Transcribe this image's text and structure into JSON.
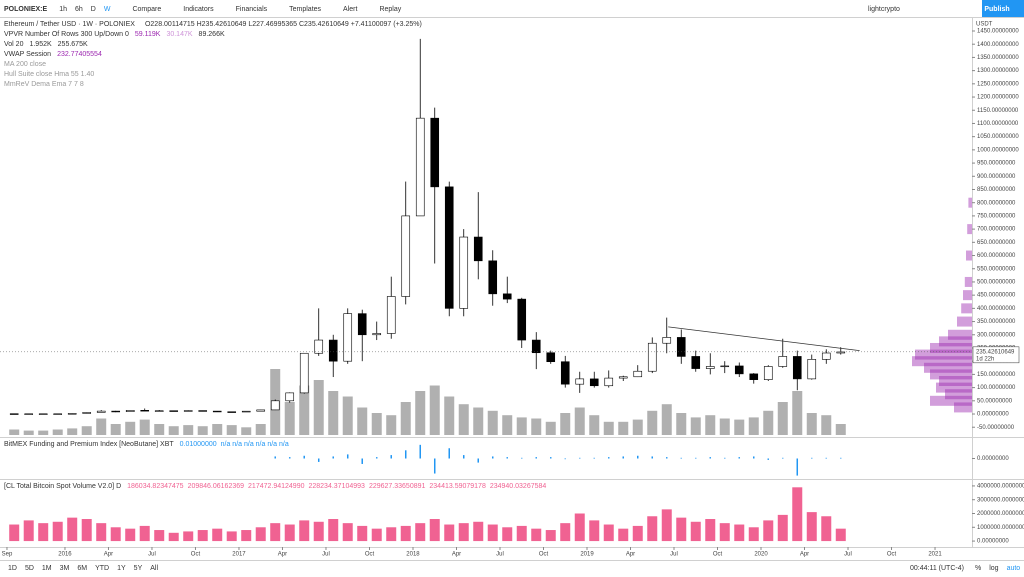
{
  "toolbar": {
    "symbol": "POLONIEX:E",
    "intervals": [
      "1h",
      "6h",
      "D",
      "W"
    ],
    "buttons": [
      "Compare",
      "Indicators",
      "Financials",
      "Templates",
      "Alert",
      "Replay"
    ],
    "user": "lightcrypto",
    "publish": "Publish"
  },
  "legend": {
    "title": "Ethereum / Tether USD · 1W · POLONIEX",
    "ohlc": "O228.00114715  H235.42610649  L227.46995365  C235.42610649  +7.41100097 (+3.25%)",
    "indicators": [
      {
        "name": "VPVR Number Of Rows 300 Up/Down 0",
        "values": [
          "59.119K",
          "30.147K",
          "89.266K"
        ]
      },
      {
        "name": "Vol 20",
        "values": [
          "1.952K",
          "255.675K"
        ]
      },
      {
        "name": "VWAP Session",
        "values": [
          "232.77405554"
        ]
      },
      {
        "name": "MA 200 close",
        "values": []
      },
      {
        "name": "Hull Suite close Hma 55 1.40",
        "values": []
      },
      {
        "name": "MmReV Dema Ema 7 7 8",
        "values": []
      }
    ]
  },
  "currency": "USDT",
  "chart_data": [
    {
      "type": "candlestick",
      "xlim": [
        -0.48,
        66.55
      ],
      "ylim": [
        -87,
        1503
      ],
      "yticks": [
        {
          "value": -50,
          "label": "-50.00000000"
        },
        {
          "value": 0,
          "label": "0.00000000"
        },
        {
          "value": 50,
          "label": "50.00000000"
        },
        {
          "value": 100,
          "label": "100.00000000"
        },
        {
          "value": 150,
          "label": "150.00000000"
        },
        {
          "value": 200,
          "label": "200.00000000"
        },
        {
          "value": 250,
          "label": "250.00000000"
        },
        {
          "value": 300,
          "label": "300.00000000"
        },
        {
          "value": 350,
          "label": "350.00000000"
        },
        {
          "value": 400,
          "label": "400.00000000"
        },
        {
          "value": 450,
          "label": "450.00000000"
        },
        {
          "value": 500,
          "label": "500.00000000"
        },
        {
          "value": 550,
          "label": "550.00000000"
        },
        {
          "value": 600,
          "label": "600.00000000"
        },
        {
          "value": 650,
          "label": "650.00000000"
        },
        {
          "value": 700,
          "label": "700.00000000"
        },
        {
          "value": 750,
          "label": "750.00000000"
        },
        {
          "value": 800,
          "label": "800.00000000"
        },
        {
          "value": 850,
          "label": "850.00000000"
        },
        {
          "value": 900,
          "label": "900.00000000"
        },
        {
          "value": 950,
          "label": "950.00000000"
        },
        {
          "value": 1000,
          "label": "1000.00000000"
        },
        {
          "value": 1050,
          "label": "1050.00000000"
        },
        {
          "value": 1100,
          "label": "1100.00000000"
        },
        {
          "value": 1150,
          "label": "1150.00000000"
        },
        {
          "value": 1200,
          "label": "1200.00000000"
        },
        {
          "value": 1250,
          "label": "1250.00000000"
        },
        {
          "value": 1300,
          "label": "1300.00000000"
        },
        {
          "value": 1350,
          "label": "1350.00000000"
        },
        {
          "value": 1400,
          "label": "1400.00000000"
        },
        {
          "value": 1450,
          "label": "1450.00000000"
        }
      ],
      "x": [
        0.5,
        1.5,
        2.5,
        3.5,
        4.5,
        5.5,
        6.5,
        7.5,
        8.5,
        9.5,
        10.5,
        11.5,
        12.5,
        13.5,
        14.5,
        15.5,
        16.5,
        17.5,
        18.5,
        19.5,
        20.5,
        21.5,
        22.5,
        23.5,
        24.5,
        25.5,
        26.5,
        27.5,
        28.5,
        29.5,
        30.5,
        31.5,
        32.5,
        33.5,
        34.5,
        35.5,
        36.5,
        37.5,
        38.5,
        39.5,
        40.5,
        41.5,
        42.5,
        43.5,
        44.5,
        45.5,
        46.5,
        47.5,
        48.5,
        49.5,
        50.5,
        51.5,
        52.5,
        53.5,
        54.5,
        55.5,
        56.5,
        57.5
      ],
      "open": [
        1.2,
        0.7,
        0.9,
        0.9,
        0.9,
        2.2,
        6,
        11,
        8.8,
        14,
        12,
        12.5,
        11,
        13,
        11,
        8.6,
        8,
        10.7,
        15.6,
        50,
        80,
        230,
        280,
        200,
        380,
        300,
        305,
        445,
        750,
        1120,
        860,
        400,
        670,
        580,
        455,
        435,
        280,
        232,
        198,
        113,
        133,
        107,
        136,
        141,
        162,
        268,
        290,
        218,
        172,
        180,
        182,
        152,
        130,
        180,
        218,
        133,
        207,
        231
      ],
      "high": [
        1.3,
        1.2,
        1,
        1,
        2.6,
        6.5,
        15,
        12,
        15,
        21,
        15,
        13,
        14,
        13,
        11,
        9,
        11,
        16,
        55,
        82,
        230,
        400,
        300,
        400,
        395,
        350,
        520,
        880,
        1420,
        1160,
        880,
        700,
        840,
        620,
        520,
        440,
        310,
        240,
        220,
        160,
        160,
        165,
        145,
        185,
        290,
        365,
        320,
        240,
        230,
        200,
        195,
        155,
        185,
        285,
        240,
        225,
        245,
        253
      ],
      "low": [
        0.6,
        0.4,
        0.8,
        0.8,
        0.9,
        2,
        6,
        7,
        8,
        11,
        10,
        10,
        11,
        10,
        8,
        6,
        8,
        10,
        15,
        43,
        77,
        220,
        140,
        190,
        200,
        280,
        285,
        415,
        750,
        570,
        370,
        370,
        510,
        410,
        420,
        250,
        170,
        190,
        100,
        80,
        100,
        100,
        125,
        140,
        155,
        230,
        190,
        160,
        150,
        155,
        140,
        115,
        125,
        175,
        90,
        130,
        190,
        225
      ],
      "close": [
        0.7,
        0.9,
        0.9,
        0.9,
        2.2,
        6,
        11,
        8.8,
        14,
        12,
        12.5,
        11,
        13,
        11,
        8.6,
        8,
        10.7,
        15.6,
        50,
        80,
        230,
        280,
        200,
        380,
        300,
        305,
        445,
        750,
        1120,
        860,
        400,
        670,
        580,
        455,
        435,
        280,
        232,
        198,
        113,
        133,
        107,
        136,
        141,
        162,
        268,
        290,
        218,
        172,
        180,
        182,
        152,
        130,
        180,
        218,
        133,
        207,
        231,
        235
      ],
      "volume": [
        5,
        4,
        4,
        5,
        6,
        8,
        15,
        10,
        12,
        14,
        10,
        8,
        9,
        8,
        10,
        9,
        7,
        10,
        60,
        30,
        45,
        50,
        40,
        35,
        25,
        20,
        18,
        30,
        40,
        45,
        35,
        28,
        25,
        22,
        18,
        16,
        15,
        12,
        20,
        25,
        18,
        12,
        12,
        14,
        22,
        28,
        20,
        16,
        18,
        15,
        14,
        16,
        22,
        30,
        40,
        20,
        18,
        10
      ],
      "volume_lim": [
        0,
        100
      ],
      "profile": {
        "prices": [
          25,
          50,
          75,
          100,
          125,
          150,
          175,
          200,
          225,
          250,
          275,
          300,
          350,
          400,
          450,
          500,
          600,
          700,
          800
        ],
        "values": [
          30,
          70,
          45,
          60,
          55,
          70,
          80,
          100,
          95,
          70,
          55,
          40,
          25,
          18,
          15,
          12,
          10,
          8,
          6
        ]
      },
      "profile_lim": [
        0,
        100
      ],
      "trendline": {
        "x": [
          45.6,
          58.8
        ],
        "y": [
          330,
          240
        ]
      },
      "last_price": 235.42610649,
      "countdown": "1d 22h"
    },
    {
      "type": "bar",
      "title": "BitMEX Funding and Premium Index [NeoButane] XBT",
      "title_values": [
        "0.01000000",
        "n/a n/a n/a n/a n/a n/a"
      ],
      "color": "#2196f3",
      "xlim": [
        -0.48,
        66.55
      ],
      "ylim": [
        -0.3,
        0.3
      ],
      "yticks": [
        {
          "value": 0,
          "label": "0.00000000"
        }
      ],
      "x": [
        0.5,
        1.5,
        2.5,
        3.5,
        4.5,
        5.5,
        6.5,
        7.5,
        8.5,
        9.5,
        10.5,
        11.5,
        12.5,
        13.5,
        14.5,
        15.5,
        16.5,
        17.5,
        18.5,
        19.5,
        20.5,
        21.5,
        22.5,
        23.5,
        24.5,
        25.5,
        26.5,
        27.5,
        28.5,
        29.5,
        30.5,
        31.5,
        32.5,
        33.5,
        34.5,
        35.5,
        36.5,
        37.5,
        38.5,
        39.5,
        40.5,
        41.5,
        42.5,
        43.5,
        44.5,
        45.5,
        46.5,
        47.5,
        48.5,
        49.5,
        50.5,
        51.5,
        52.5,
        53.5,
        54.5,
        55.5,
        56.5,
        57.5
      ],
      "values": [
        null,
        null,
        null,
        null,
        null,
        null,
        null,
        null,
        null,
        null,
        null,
        null,
        null,
        null,
        null,
        null,
        null,
        null,
        0.03,
        0.02,
        0.04,
        -0.05,
        0.03,
        0.06,
        -0.08,
        0.02,
        0.05,
        0.12,
        0.2,
        -0.22,
        0.15,
        0.05,
        -0.06,
        0.03,
        0.02,
        0.01,
        0.02,
        0.02,
        -0.01,
        0.01,
        0.01,
        0.02,
        0.03,
        0.04,
        0.03,
        0.02,
        0.01,
        0.01,
        0.02,
        0.01,
        0.02,
        0.03,
        -0.02,
        0.01,
        -0.25,
        0.01,
        0.01,
        0.01
      ]
    },
    {
      "type": "bar",
      "title": "[CL Total Bitcoin Spot Volume V2.0] D",
      "title_values": [
        "186034.82347475",
        "209846.06162369",
        "217472.94124990",
        "228234.37104993",
        "229627.33650891",
        "234413.59079178",
        "234940.03267584"
      ],
      "color": "#f06292",
      "xlim": [
        -0.48,
        66.55
      ],
      "ylim": [
        -430000,
        4430000
      ],
      "yticks": [
        {
          "value": 0,
          "label": "0.00000000"
        },
        {
          "value": 1000000,
          "label": "1000000.00000000"
        },
        {
          "value": 2000000,
          "label": "2000000.00000000"
        },
        {
          "value": 3000000,
          "label": "3000000.00000000"
        },
        {
          "value": 4000000,
          "label": "4000000.00000000"
        }
      ],
      "xticks": [
        {
          "value": 0,
          "label": "Sep"
        },
        {
          "value": 4,
          "label": "2016"
        },
        {
          "value": 7,
          "label": "Apr"
        },
        {
          "value": 10,
          "label": "Jul"
        },
        {
          "value": 13,
          "label": "Oct"
        },
        {
          "value": 16,
          "label": "2017"
        },
        {
          "value": 19,
          "label": "Apr"
        },
        {
          "value": 22,
          "label": "Jul"
        },
        {
          "value": 25,
          "label": "Oct"
        },
        {
          "value": 28,
          "label": "2018"
        },
        {
          "value": 31,
          "label": "Apr"
        },
        {
          "value": 34,
          "label": "Jul"
        },
        {
          "value": 37,
          "label": "Oct"
        },
        {
          "value": 40,
          "label": "2019"
        },
        {
          "value": 43,
          "label": "Apr"
        },
        {
          "value": 46,
          "label": "Jul"
        },
        {
          "value": 49,
          "label": "Oct"
        },
        {
          "value": 52,
          "label": "2020"
        },
        {
          "value": 55,
          "label": "Apr"
        },
        {
          "value": 58,
          "label": "Jul"
        },
        {
          "value": 61,
          "label": "Oct"
        },
        {
          "value": 64,
          "label": "2021"
        }
      ],
      "x": [
        0.5,
        1.5,
        2.5,
        3.5,
        4.5,
        5.5,
        6.5,
        7.5,
        8.5,
        9.5,
        10.5,
        11.5,
        12.5,
        13.5,
        14.5,
        15.5,
        16.5,
        17.5,
        18.5,
        19.5,
        20.5,
        21.5,
        22.5,
        23.5,
        24.5,
        25.5,
        26.5,
        27.5,
        28.5,
        29.5,
        30.5,
        31.5,
        32.5,
        33.5,
        34.5,
        35.5,
        36.5,
        37.5,
        38.5,
        39.5,
        40.5,
        41.5,
        42.5,
        43.5,
        44.5,
        45.5,
        46.5,
        47.5,
        48.5,
        49.5,
        50.5,
        51.5,
        52.5,
        53.5,
        54.5,
        55.5,
        56.5,
        57.5
      ],
      "values": [
        1200000,
        1500000,
        1300000,
        1400000,
        1700000,
        1600000,
        1300000,
        1000000,
        900000,
        1100000,
        800000,
        600000,
        700000,
        800000,
        900000,
        700000,
        800000,
        1000000,
        1300000,
        1200000,
        1500000,
        1400000,
        1600000,
        1300000,
        1100000,
        900000,
        1000000,
        1100000,
        1300000,
        1600000,
        1200000,
        1300000,
        1400000,
        1200000,
        1000000,
        1100000,
        900000,
        800000,
        1300000,
        2000000,
        1500000,
        1200000,
        900000,
        1100000,
        1800000,
        2300000,
        1700000,
        1400000,
        1600000,
        1300000,
        1200000,
        1000000,
        1500000,
        1900000,
        3900000,
        2100000,
        1800000,
        900000
      ]
    }
  ],
  "bottom": {
    "ranges": [
      "1D",
      "5D",
      "1M",
      "3M",
      "6M",
      "YTD",
      "1Y",
      "5Y",
      "All"
    ],
    "clock": "00:44:11 (UTC-4)",
    "options": [
      "%",
      "log",
      "auto"
    ]
  }
}
